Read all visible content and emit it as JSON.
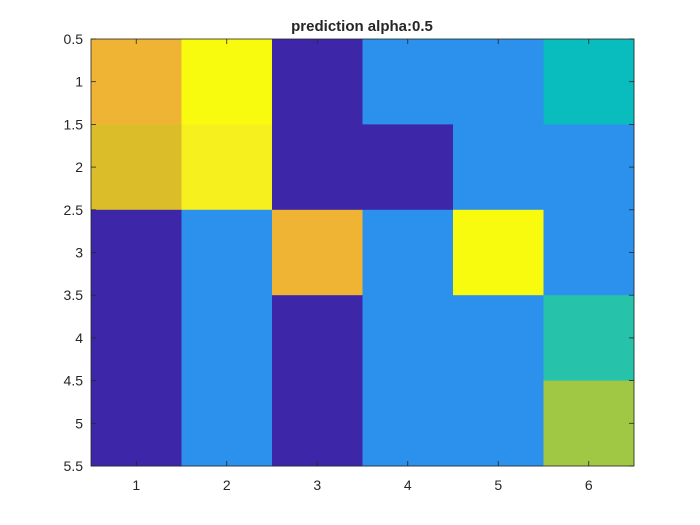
{
  "chart_data": {
    "type": "heatmap",
    "title": "prediction alpha:0.5",
    "xlabel": "",
    "ylabel": "",
    "x_categories": [
      1,
      2,
      3,
      4,
      5,
      6
    ],
    "y_categories": [
      1,
      2,
      3,
      4,
      5
    ],
    "x_tick_labels": [
      "1",
      "2",
      "3",
      "4",
      "5",
      "6"
    ],
    "y_tick_labels": [
      "0.5",
      "1",
      "1.5",
      "2",
      "2.5",
      "3",
      "3.5",
      "4",
      "4.5",
      "5",
      "5.5"
    ],
    "xlim": [
      0.5,
      6.5
    ],
    "ylim": [
      0.5,
      5.5
    ],
    "y_direction": "reversed",
    "colormap": "parula",
    "clim": [
      0,
      1
    ],
    "values": [
      [
        0.86,
        1.0,
        0.0,
        0.45,
        0.45,
        0.55
      ],
      [
        0.8,
        0.97,
        0.0,
        0.0,
        0.45,
        0.45
      ],
      [
        0.0,
        0.45,
        0.86,
        0.45,
        1.0,
        0.45
      ],
      [
        0.0,
        0.45,
        0.0,
        0.45,
        0.45,
        0.6
      ],
      [
        0.0,
        0.45,
        0.0,
        0.45,
        0.45,
        0.75
      ]
    ],
    "grid": false,
    "colorbar": false
  }
}
